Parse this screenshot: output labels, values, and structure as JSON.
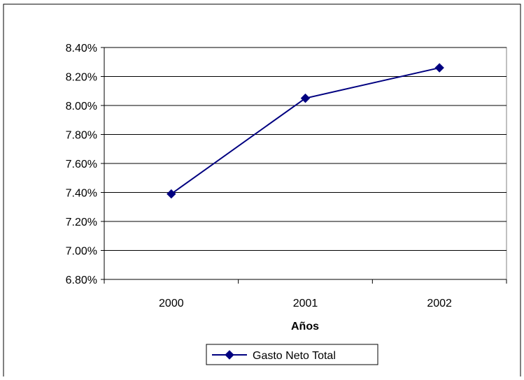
{
  "chart_data": {
    "type": "line",
    "title": "",
    "xlabel": "Años",
    "ylabel": "",
    "categories": [
      "2000",
      "2001",
      "2002"
    ],
    "series": [
      {
        "name": "Gasto Neto Total",
        "values": [
          7.39,
          8.05,
          8.26
        ],
        "color": "#000080",
        "marker": "diamond"
      }
    ],
    "ylim": [
      6.8,
      8.4
    ],
    "yticks": [
      "6.80%",
      "7.00%",
      "7.20%",
      "7.40%",
      "7.60%",
      "7.80%",
      "8.00%",
      "8.20%",
      "8.40%"
    ],
    "grid": "horizontal",
    "legend": "bottom-center",
    "colors": {
      "plot_background": "#ffffff",
      "gridline": "#000000",
      "series": "#000080"
    }
  }
}
